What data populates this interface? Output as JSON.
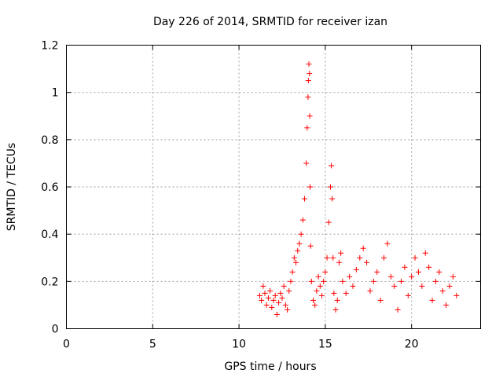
{
  "chart_data": {
    "type": "scatter",
    "title": "Day 226 of 2014, SRMTID for receiver izan",
    "xlabel": "GPS time / hours",
    "ylabel": "SRMTID / TECUs",
    "xlim": [
      0,
      24
    ],
    "ylim": [
      0,
      1.2
    ],
    "xticks": [
      0,
      5,
      10,
      15,
      20
    ],
    "xtick_labels": [
      "0",
      "5",
      "10",
      "15",
      "20"
    ],
    "yticks": [
      0,
      0.2,
      0.4,
      0.6,
      0.8,
      1.0,
      1.2
    ],
    "ytick_labels": [
      "0",
      "0.2",
      "0.4",
      "0.6",
      "0.8",
      "1",
      "1.2"
    ],
    "grid": true,
    "marker": "+",
    "series_color": "#ff0000",
    "series": [
      {
        "name": "SRMTID",
        "x": [
          11.2,
          11.3,
          11.4,
          11.5,
          11.6,
          11.7,
          11.8,
          11.9,
          12.0,
          12.1,
          12.2,
          12.3,
          12.4,
          12.5,
          12.6,
          12.7,
          12.8,
          12.9,
          13.0,
          13.1,
          13.2,
          13.3,
          13.4,
          13.5,
          13.6,
          13.7,
          13.8,
          13.9,
          13.95,
          14.0,
          14.02,
          14.05,
          14.08,
          14.1,
          14.12,
          14.15,
          14.2,
          14.3,
          14.4,
          14.5,
          14.6,
          14.7,
          14.8,
          14.9,
          15.0,
          15.1,
          15.2,
          15.3,
          15.35,
          15.4,
          15.45,
          15.5,
          15.6,
          15.7,
          15.8,
          15.9,
          16.0,
          16.2,
          16.4,
          16.6,
          16.8,
          17.0,
          17.2,
          17.4,
          17.6,
          17.8,
          18.0,
          18.2,
          18.4,
          18.6,
          18.8,
          19.0,
          19.2,
          19.4,
          19.6,
          19.8,
          20.0,
          20.2,
          20.4,
          20.6,
          20.8,
          21.0,
          21.2,
          21.4,
          21.6,
          21.8,
          22.0,
          22.2,
          22.4,
          22.6
        ],
        "y": [
          0.14,
          0.12,
          0.18,
          0.15,
          0.1,
          0.13,
          0.16,
          0.09,
          0.12,
          0.14,
          0.06,
          0.11,
          0.15,
          0.13,
          0.18,
          0.1,
          0.08,
          0.16,
          0.2,
          0.24,
          0.3,
          0.28,
          0.33,
          0.36,
          0.4,
          0.46,
          0.55,
          0.7,
          0.85,
          0.98,
          1.05,
          1.12,
          1.08,
          0.9,
          0.6,
          0.35,
          0.2,
          0.12,
          0.1,
          0.16,
          0.22,
          0.18,
          0.14,
          0.2,
          0.24,
          0.3,
          0.45,
          0.6,
          0.69,
          0.55,
          0.3,
          0.15,
          0.08,
          0.12,
          0.28,
          0.32,
          0.2,
          0.15,
          0.22,
          0.18,
          0.25,
          0.3,
          0.34,
          0.28,
          0.16,
          0.2,
          0.24,
          0.12,
          0.3,
          0.36,
          0.22,
          0.18,
          0.08,
          0.2,
          0.26,
          0.14,
          0.22,
          0.3,
          0.24,
          0.18,
          0.32,
          0.26,
          0.12,
          0.2,
          0.24,
          0.16,
          0.1,
          0.18,
          0.22,
          0.14
        ]
      }
    ]
  }
}
